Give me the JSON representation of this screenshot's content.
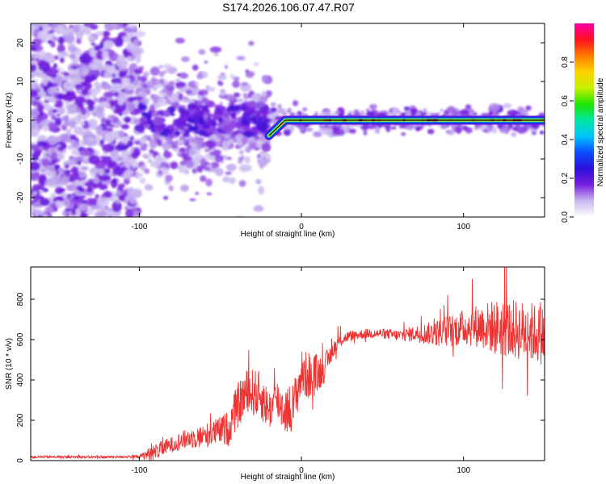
{
  "title": "S174.2026.106.07.47.R07",
  "chart_data": [
    {
      "type": "heatmap",
      "title": "S174.2026.106.07.47.R07",
      "xlabel": "Height of straight line (km)",
      "ylabel": "Frequency (Hz)",
      "xlim": [
        -167,
        150
      ],
      "ylim": [
        -25,
        25
      ],
      "xticks": [
        -100,
        0,
        100
      ],
      "yticks": [
        -20,
        -10,
        0,
        10,
        20
      ],
      "colorbar": {
        "label": "Normalized spectral amplitude",
        "range": [
          0,
          1
        ],
        "ticks": [
          0.0,
          0.2,
          0.4,
          0.6,
          0.8
        ],
        "tick_labels": [
          "0.0",
          "0.2",
          "0.4",
          "0.6",
          "0.8"
        ],
        "colors": [
          "#ffffff",
          "#c9b8f0",
          "#7a1fe0",
          "#2a10d8",
          "#0b4cff",
          "#00c4ff",
          "#00e6a0",
          "#1fe600",
          "#c8f000",
          "#ffd200",
          "#ff7a00",
          "#ff1020",
          "#ff00a8"
        ]
      },
      "description_points": {
        "noise_region_x": [
          -167,
          -100
        ],
        "transition_region_x": [
          -100,
          -20
        ],
        "signal_line": [
          {
            "x": -20,
            "y": -4
          },
          {
            "x": -15,
            "y": -2
          },
          {
            "x": -10,
            "y": 0
          },
          {
            "x": 0,
            "y": 0
          },
          {
            "x": 150,
            "y": 0
          }
        ]
      }
    },
    {
      "type": "line",
      "xlabel": "Height of straight line (km)",
      "ylabel": "SNR (10 * v/v)",
      "xlim": [
        -167,
        150
      ],
      "ylim": [
        0,
        960
      ],
      "xticks": [
        -100,
        0,
        100
      ],
      "yticks": [
        0,
        200,
        400,
        600,
        800
      ],
      "color": "#ee3333",
      "series": [
        {
          "name": "SNR",
          "x": [
            -167,
            -120,
            -100,
            -95,
            -90,
            -80,
            -70,
            -60,
            -50,
            -45,
            -40,
            -35,
            -30,
            -25,
            -20,
            -15,
            -10,
            -5,
            0,
            5,
            10,
            15,
            20,
            25,
            30,
            40,
            50,
            60,
            70,
            80,
            90,
            100,
            110,
            120,
            130,
            140,
            150
          ],
          "mean": [
            18,
            18,
            20,
            30,
            45,
            80,
            110,
            120,
            150,
            160,
            260,
            330,
            340,
            320,
            250,
            300,
            250,
            270,
            430,
            420,
            430,
            470,
            560,
            600,
            620,
            630,
            630,
            620,
            630,
            630,
            640,
            660,
            670,
            660,
            650,
            640,
            620
          ],
          "amp": [
            6,
            6,
            8,
            30,
            40,
            40,
            50,
            60,
            70,
            90,
            110,
            120,
            120,
            120,
            100,
            110,
            120,
            120,
            120,
            120,
            100,
            70,
            40,
            30,
            25,
            25,
            25,
            30,
            40,
            60,
            80,
            90,
            110,
            140,
            150,
            150,
            150
          ]
        }
      ]
    }
  ]
}
